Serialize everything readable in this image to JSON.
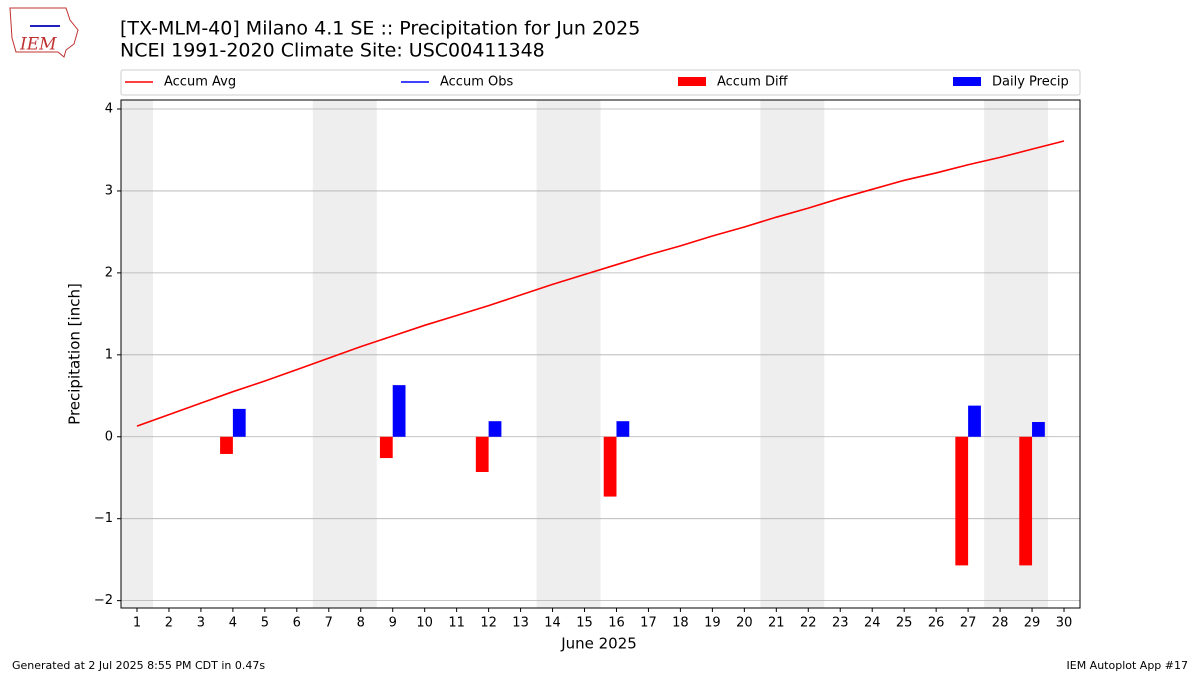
{
  "chart_data": {
    "type": "line_bar",
    "title": "[TX-MLM-40] Milano 4.1 SE :: Precipitation for Jun 2025",
    "subtitle": "NCEI 1991-2020 Climate Site: USC00411348",
    "logo": "IEM",
    "xlabel": "June 2025",
    "ylabel": "Precipitation [inch]",
    "footer_left": "Generated at 2 Jul 2025 8:55 PM CDT in 0.47s",
    "footer_right": "IEM Autoplot App #17",
    "x": [
      1,
      2,
      3,
      4,
      5,
      6,
      7,
      8,
      9,
      10,
      11,
      12,
      13,
      14,
      15,
      16,
      17,
      18,
      19,
      20,
      21,
      22,
      23,
      24,
      25,
      26,
      27,
      28,
      29,
      30
    ],
    "xlim": [
      0.5,
      30.5
    ],
    "xticks": [
      1,
      2,
      3,
      4,
      5,
      6,
      7,
      8,
      9,
      10,
      11,
      12,
      13,
      14,
      15,
      16,
      17,
      18,
      19,
      20,
      21,
      22,
      23,
      24,
      25,
      26,
      27,
      28,
      29,
      30
    ],
    "ylim": [
      -2.09,
      4.11
    ],
    "yticks": [
      {
        "value": -2,
        "label": "−2"
      },
      {
        "value": -1,
        "label": "−1"
      },
      0,
      1,
      2,
      3,
      4
    ],
    "grid": true,
    "shaded_spans": [
      [
        0.5,
        1.5
      ],
      [
        6.5,
        8.5
      ],
      [
        13.5,
        15.5
      ],
      [
        20.5,
        22.5
      ],
      [
        27.5,
        29.5
      ]
    ],
    "shade_color": "#eeeeee",
    "series": [
      {
        "name": "Accum Avg",
        "kind": "line",
        "color": "#ff0000",
        "values": [
          0.13,
          0.27,
          0.41,
          0.55,
          0.68,
          0.82,
          0.96,
          1.1,
          1.23,
          1.36,
          1.48,
          1.6,
          1.73,
          1.86,
          1.98,
          2.1,
          2.22,
          2.33,
          2.45,
          2.56,
          2.68,
          2.79,
          2.91,
          3.02,
          3.13,
          3.22,
          3.32,
          3.41,
          3.51,
          3.61
        ]
      },
      {
        "name": "Accum Obs",
        "kind": "line",
        "color": "#0000ff",
        "values": [
          null,
          null,
          null,
          null,
          null,
          null,
          null,
          null,
          null,
          null,
          null,
          null,
          null,
          null,
          null,
          null,
          null,
          null,
          null,
          null,
          null,
          null,
          null,
          null,
          null,
          null,
          null,
          null,
          null,
          null
        ]
      },
      {
        "name": "Accum Diff",
        "kind": "bar",
        "offset": -0.2,
        "color": "#ff0000",
        "values": [
          null,
          null,
          null,
          -0.21,
          null,
          null,
          null,
          null,
          -0.26,
          null,
          null,
          -0.43,
          null,
          null,
          null,
          -0.73,
          null,
          null,
          null,
          null,
          null,
          null,
          null,
          null,
          null,
          null,
          -1.57,
          null,
          -1.57,
          null
        ]
      },
      {
        "name": "Daily Precip",
        "kind": "bar",
        "offset": 0.2,
        "color": "#0000ff",
        "values": [
          null,
          null,
          null,
          0.34,
          null,
          null,
          null,
          null,
          0.63,
          null,
          null,
          0.19,
          null,
          null,
          null,
          0.19,
          null,
          null,
          null,
          null,
          null,
          null,
          null,
          null,
          null,
          null,
          0.38,
          null,
          0.18,
          null
        ]
      }
    ]
  }
}
